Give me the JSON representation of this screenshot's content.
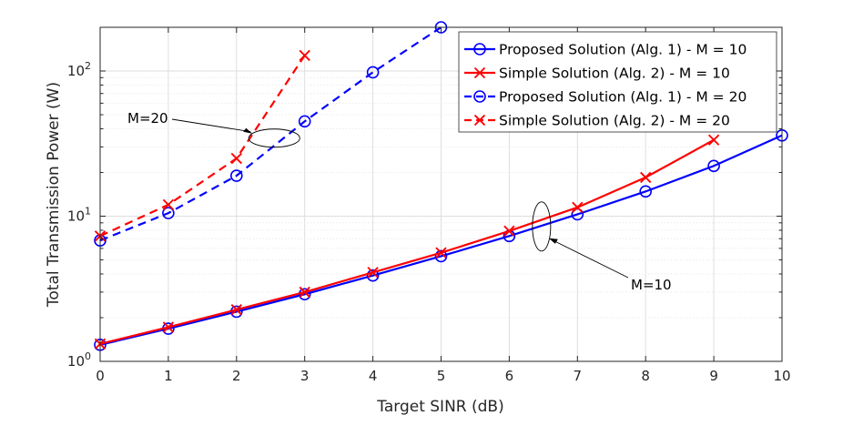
{
  "chart_data": {
    "type": "line",
    "yscale": "log",
    "xlabel": "Target SINR (dB)",
    "ylabel": "Total Transmission Power (W)",
    "xlim": [
      0,
      10
    ],
    "ylim": [
      1,
      200
    ],
    "grid": true,
    "legend_position": "top-right",
    "x_ticks": [
      "0",
      "1",
      "2",
      "3",
      "4",
      "5",
      "6",
      "7",
      "8",
      "9",
      "10"
    ],
    "y_ticks": [
      {
        "base": "10",
        "exp": "0",
        "value": 1
      },
      {
        "base": "10",
        "exp": "1",
        "value": 10
      },
      {
        "base": "10",
        "exp": "2",
        "value": 100
      }
    ],
    "series": [
      {
        "name": "Proposed Solution (Alg. 1) - M = 10",
        "color": "#0000ff",
        "dash": "solid",
        "marker": "circle",
        "x": [
          0,
          1,
          2,
          3,
          4,
          5,
          6,
          7,
          8,
          9,
          10
        ],
        "y": [
          1.3,
          1.68,
          2.2,
          2.9,
          3.9,
          5.3,
          7.3,
          10.3,
          14.8,
          22.2,
          36.0
        ]
      },
      {
        "name": "Simple Solution (Alg. 2) - M = 10",
        "color": "#ff0000",
        "dash": "solid",
        "marker": "x",
        "x": [
          0,
          1,
          2,
          3,
          4,
          5,
          6,
          7,
          8,
          9
        ],
        "y": [
          1.32,
          1.72,
          2.27,
          3.0,
          4.1,
          5.6,
          7.9,
          11.5,
          18.5,
          33.5
        ]
      },
      {
        "name": "Proposed Solution (Alg. 1) - M = 20",
        "color": "#0000ff",
        "dash": "dashed",
        "marker": "circle",
        "x": [
          0,
          1,
          2,
          3,
          4,
          5
        ],
        "y": [
          6.8,
          10.5,
          19.0,
          45.0,
          98.0,
          200.0
        ]
      },
      {
        "name": "Simple Solution (Alg. 2) - M = 20",
        "color": "#ff0000",
        "dash": "dashed",
        "marker": "x",
        "x": [
          0,
          1,
          2,
          3
        ],
        "y": [
          7.3,
          12.0,
          25.0,
          128.0
        ]
      }
    ],
    "annotations": [
      {
        "text": "M=20",
        "ellipse_x": 2.5,
        "ellipse_y": 34
      },
      {
        "text": "M=10",
        "ellipse_x": 6.5,
        "ellipse_y": 8.5
      }
    ]
  }
}
